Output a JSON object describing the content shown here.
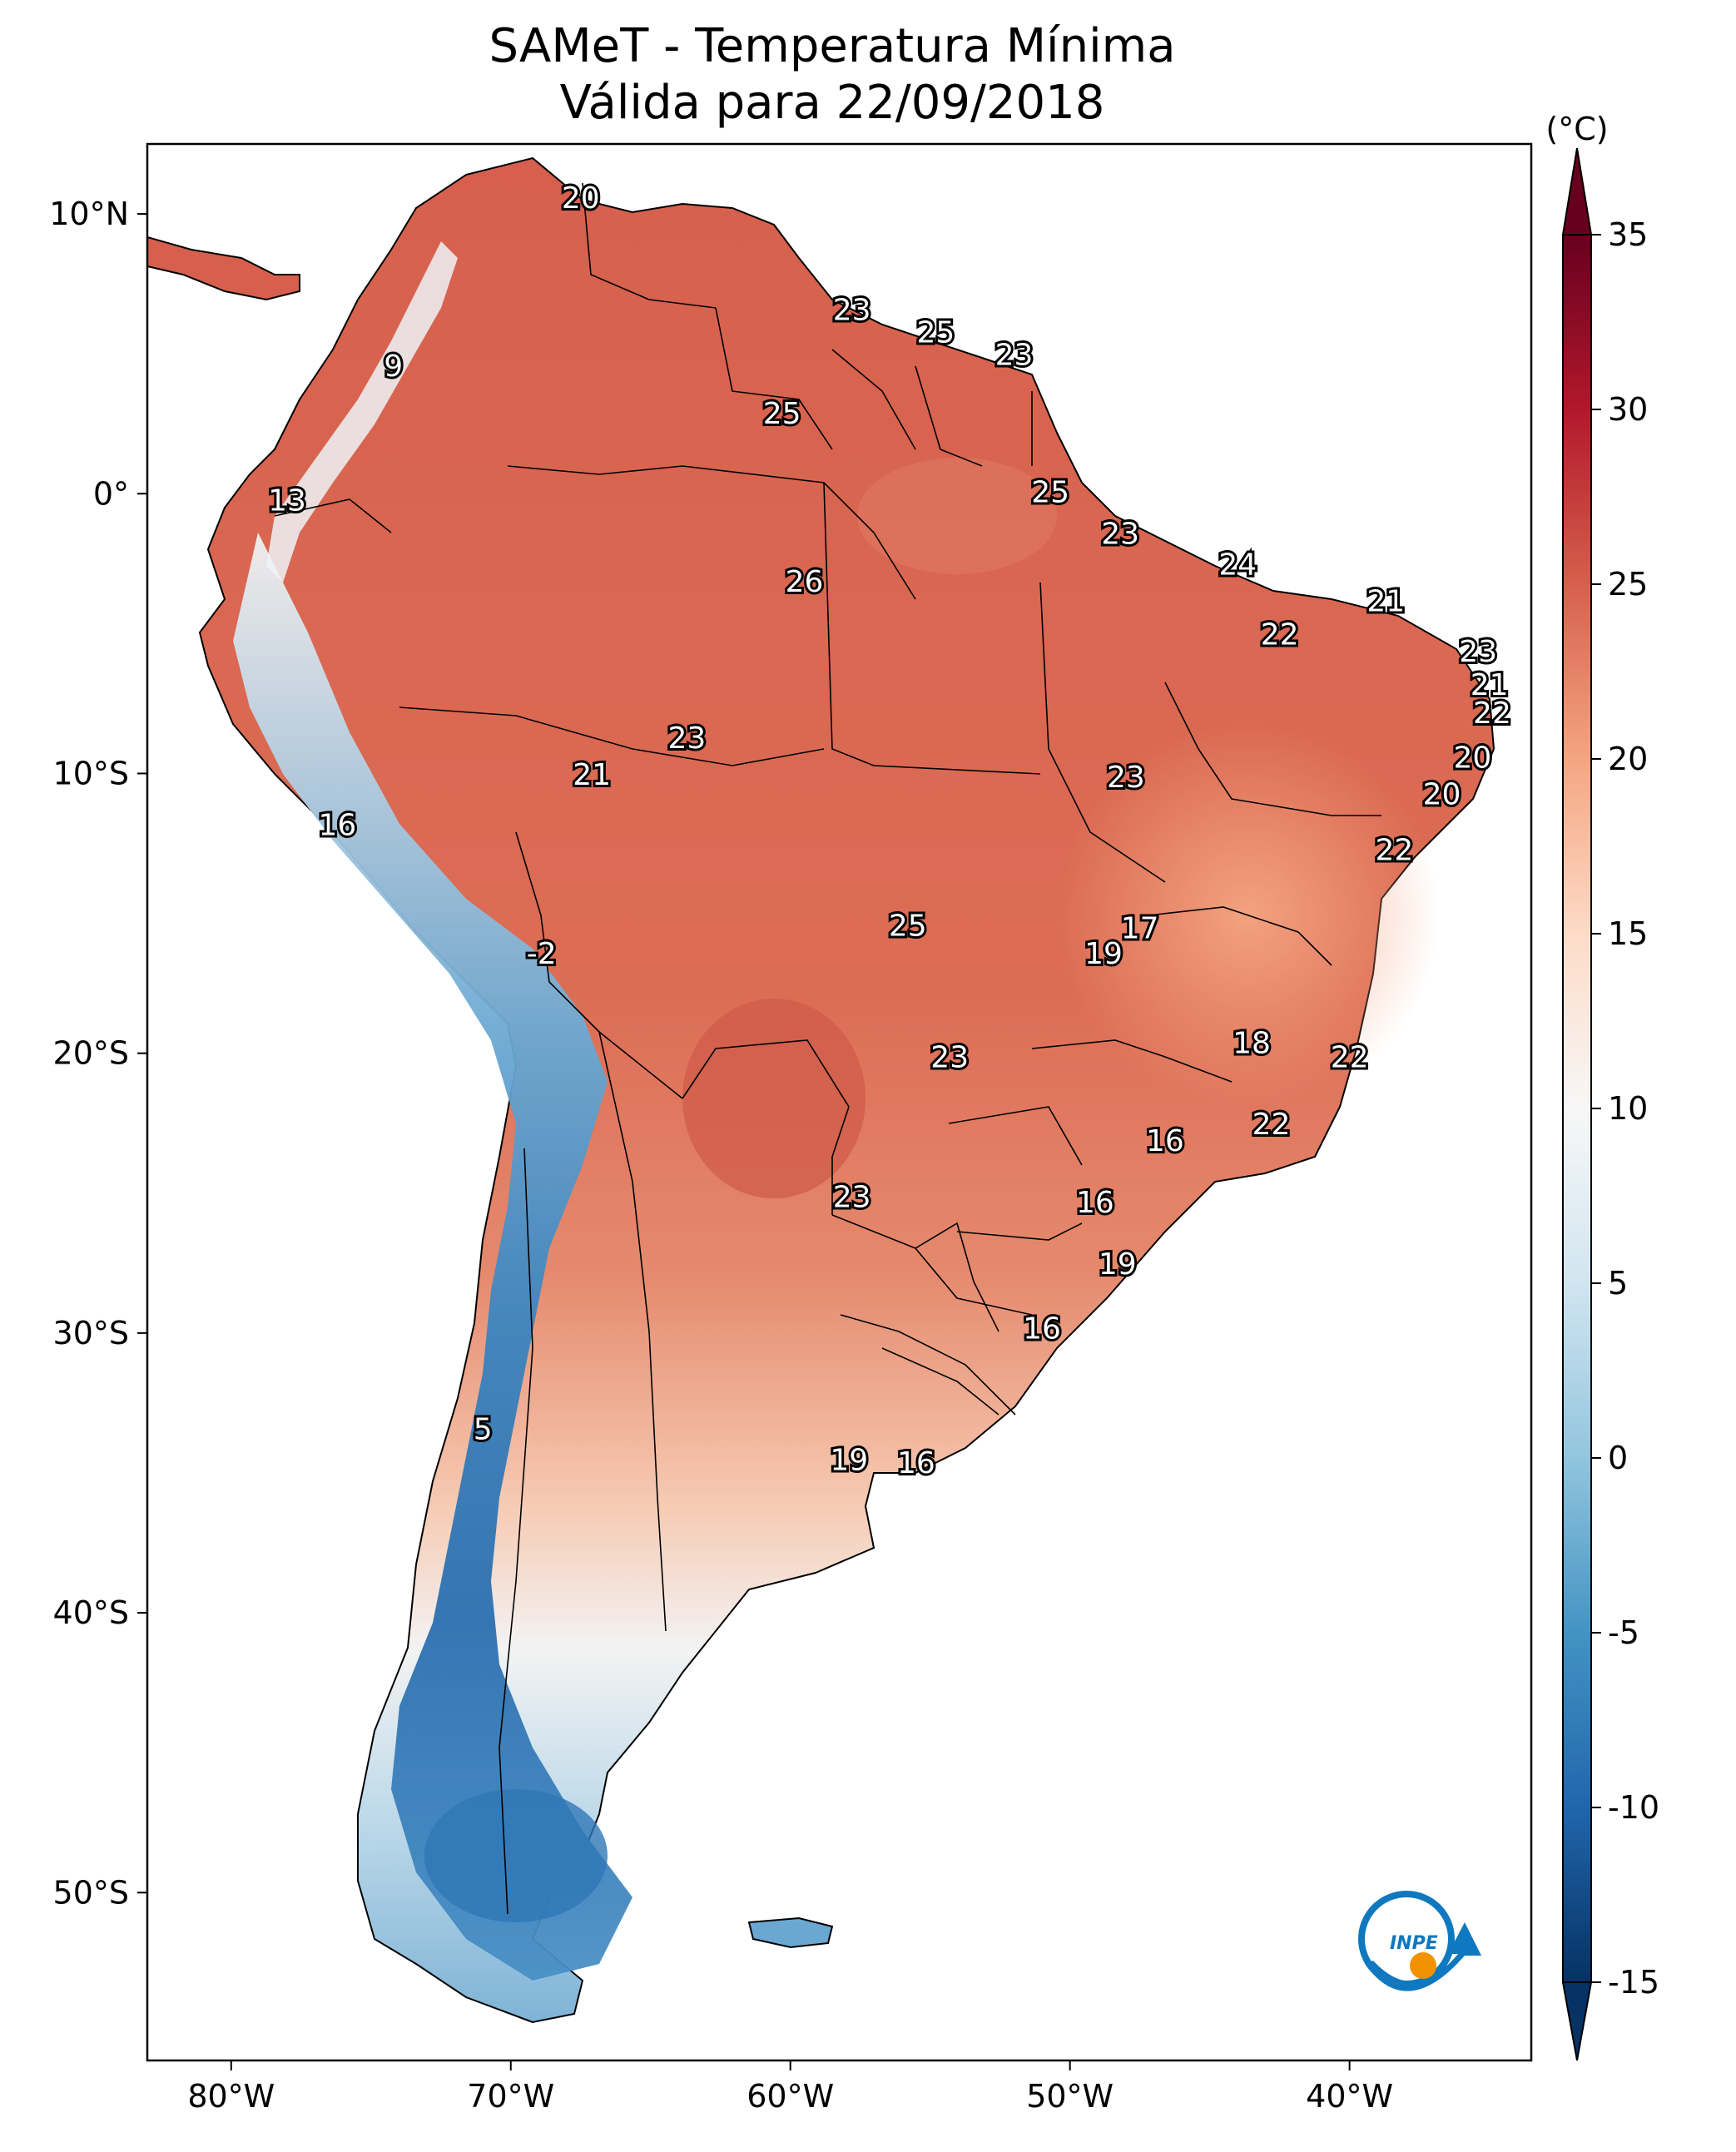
{
  "title": {
    "line1": "SAMeT - Temperatura Mínima",
    "line2": "Válida para 22/09/2018"
  },
  "axes": {
    "lat_labels": [
      "10°N",
      "0°",
      "10°S",
      "20°S",
      "30°S",
      "40°S",
      "50°S"
    ],
    "lon_labels": [
      "80°W",
      "70°W",
      "60°W",
      "50°W",
      "40°W"
    ],
    "extent": {
      "lon": [
        -83,
        -33.5
      ],
      "lat": [
        12.5,
        -56
      ]
    }
  },
  "colorbar": {
    "unit": "(°C)",
    "ticks": [
      "35",
      "30",
      "25",
      "20",
      "15",
      "10",
      "5",
      "0",
      "-5",
      "-10",
      "-15"
    ],
    "range": [
      -15,
      35
    ],
    "colors": [
      "#063264",
      "#2166ac",
      "#4393c3",
      "#92c5de",
      "#d1e5f0",
      "#f7f7f7",
      "#fddbc7",
      "#f4a582",
      "#d6604d",
      "#b2182b",
      "#67001f"
    ]
  },
  "logo": {
    "text": "INPE",
    "name": "inpe-logo"
  },
  "labels": [
    {
      "v": "20",
      "lon": -67.5,
      "lat": 10.5
    },
    {
      "v": "9",
      "lon": -74.2,
      "lat": 4.5
    },
    {
      "v": "23",
      "lon": -57.8,
      "lat": 6.5
    },
    {
      "v": "25",
      "lon": -54.8,
      "lat": 5.7
    },
    {
      "v": "23",
      "lon": -52.0,
      "lat": 4.9
    },
    {
      "v": "25",
      "lon": -60.3,
      "lat": 2.8
    },
    {
      "v": "25",
      "lon": -50.7,
      "lat": 0.0
    },
    {
      "v": "13",
      "lon": -78.0,
      "lat": -0.3
    },
    {
      "v": "23",
      "lon": -48.2,
      "lat": -1.5
    },
    {
      "v": "24",
      "lon": -44.0,
      "lat": -2.6
    },
    {
      "v": "26",
      "lon": -59.5,
      "lat": -3.2
    },
    {
      "v": "21",
      "lon": -38.7,
      "lat": -3.9
    },
    {
      "v": "22",
      "lon": -42.5,
      "lat": -5.1
    },
    {
      "v": "23",
      "lon": -35.4,
      "lat": -5.7
    },
    {
      "v": "21",
      "lon": -35.0,
      "lat": -6.9
    },
    {
      "v": "22",
      "lon": -34.9,
      "lat": -7.9
    },
    {
      "v": "23",
      "lon": -63.7,
      "lat": -8.8
    },
    {
      "v": "20",
      "lon": -35.6,
      "lat": -9.5
    },
    {
      "v": "21",
      "lon": -67.1,
      "lat": -10.1
    },
    {
      "v": "23",
      "lon": -48.0,
      "lat": -10.2
    },
    {
      "v": "20",
      "lon": -36.7,
      "lat": -10.8
    },
    {
      "v": "16",
      "lon": -76.2,
      "lat": -11.9
    },
    {
      "v": "22",
      "lon": -38.4,
      "lat": -12.8
    },
    {
      "v": "25",
      "lon": -55.8,
      "lat": -15.5
    },
    {
      "v": "17",
      "lon": -47.5,
      "lat": -15.6
    },
    {
      "v": "-2",
      "lon": -68.9,
      "lat": -16.5
    },
    {
      "v": "19",
      "lon": -48.8,
      "lat": -16.5
    },
    {
      "v": "18",
      "lon": -43.5,
      "lat": -19.7
    },
    {
      "v": "23",
      "lon": -54.3,
      "lat": -20.2
    },
    {
      "v": "22",
      "lon": -40.0,
      "lat": -20.2
    },
    {
      "v": "22",
      "lon": -42.8,
      "lat": -22.6
    },
    {
      "v": "16",
      "lon": -46.6,
      "lat": -23.2
    },
    {
      "v": "23",
      "lon": -57.8,
      "lat": -25.2
    },
    {
      "v": "16",
      "lon": -49.1,
      "lat": -25.4
    },
    {
      "v": "19",
      "lon": -48.3,
      "lat": -27.6
    },
    {
      "v": "16",
      "lon": -51.0,
      "lat": -29.9
    },
    {
      "v": "5",
      "lon": -71.0,
      "lat": -33.5
    },
    {
      "v": "19",
      "lon": -57.9,
      "lat": -34.6
    },
    {
      "v": "16",
      "lon": -55.5,
      "lat": -34.7
    }
  ]
}
